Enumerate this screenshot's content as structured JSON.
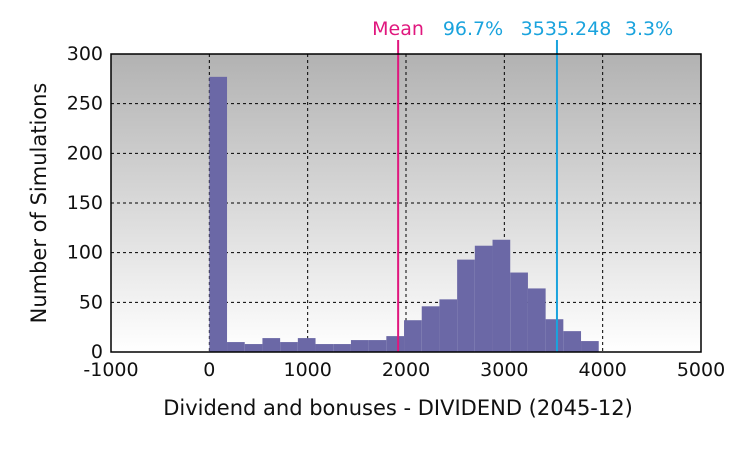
{
  "chart_data": {
    "type": "bar",
    "title": "",
    "xlabel": "Dividend and bonuses - DIVIDEND (2045-12)",
    "ylabel": "Number of Simulations",
    "xlim": [
      -1000,
      5000
    ],
    "ylim": [
      0,
      300
    ],
    "x_ticks": [
      "-1000",
      "0",
      "1000",
      "2000",
      "3000",
      "4000",
      "5000"
    ],
    "y_ticks": [
      "0",
      "50",
      "100",
      "150",
      "200",
      "250",
      "300"
    ],
    "bin_width": 180,
    "bins": [
      {
        "x0": 0,
        "count": 277
      },
      {
        "x0": 180,
        "count": 10
      },
      {
        "x0": 360,
        "count": 8
      },
      {
        "x0": 540,
        "count": 14
      },
      {
        "x0": 720,
        "count": 10
      },
      {
        "x0": 900,
        "count": 14
      },
      {
        "x0": 1080,
        "count": 8
      },
      {
        "x0": 1260,
        "count": 8
      },
      {
        "x0": 1440,
        "count": 12
      },
      {
        "x0": 1620,
        "count": 12
      },
      {
        "x0": 1800,
        "count": 16
      },
      {
        "x0": 1980,
        "count": 32
      },
      {
        "x0": 2160,
        "count": 46
      },
      {
        "x0": 2340,
        "count": 53
      },
      {
        "x0": 2520,
        "count": 93
      },
      {
        "x0": 2700,
        "count": 107
      },
      {
        "x0": 2880,
        "count": 113
      },
      {
        "x0": 3060,
        "count": 80
      },
      {
        "x0": 3240,
        "count": 64
      },
      {
        "x0": 3420,
        "count": 33
      },
      {
        "x0": 3600,
        "count": 21
      },
      {
        "x0": 3780,
        "count": 11
      }
    ],
    "mean": {
      "label": "Mean",
      "value": 1920
    },
    "threshold": {
      "value": 3535.248,
      "label": "3535.248",
      "left_pct": "96.7%",
      "right_pct": "3.3%"
    },
    "colors": {
      "bar": "#6b68a6",
      "mean": "#e0177e",
      "threshold": "#1aa3dd",
      "grid": "#000000"
    }
  }
}
